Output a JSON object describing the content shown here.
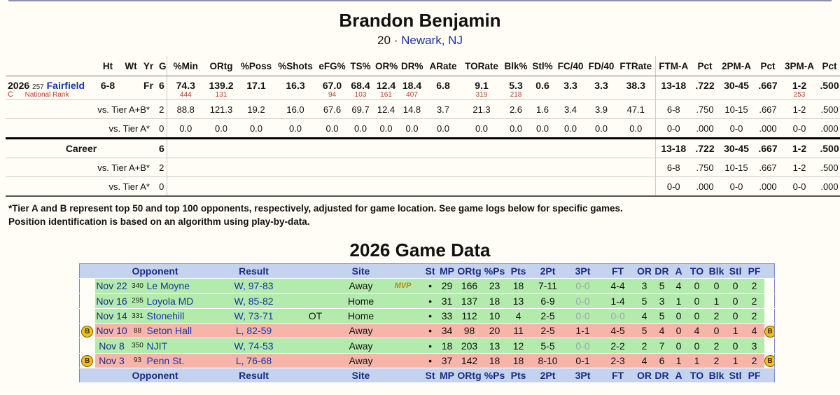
{
  "player": {
    "name": "Brandon Benjamin",
    "number": "20",
    "dot": "·",
    "hometown": "Newark, NJ"
  },
  "stats": {
    "headers": [
      "",
      "Ht",
      "Wt",
      "Yr",
      "G",
      "%Min",
      "ORtg",
      "%Poss",
      "%Shots",
      "eFG%",
      "TS%",
      "OR%",
      "DR%",
      "ARate",
      "TORate",
      "Blk%",
      "Stl%",
      "FC/40",
      "FD/40",
      "FTRate",
      "FTM-A",
      "Pct",
      "2PM-A",
      "Pct",
      "3PM-A",
      "Pct"
    ],
    "main": {
      "year": "2026",
      "team_rank": "257",
      "team": "Fairfield",
      "position": "C",
      "national_rank_label": "National Rank",
      "ht": "6-8",
      "wt": "",
      "yr": "Fr",
      "g": "6",
      "values": [
        "74.3",
        "139.2",
        "17.1",
        "16.3",
        "67.0",
        "68.4",
        "12.4",
        "18.4",
        "6.8",
        "9.1",
        "5.3",
        "0.6",
        "3.3",
        "3.3",
        "38.3",
        "13-18",
        ".722",
        "30-45",
        ".667",
        "1-2",
        ".500"
      ],
      "ranks": [
        "444",
        "131",
        "",
        "",
        "94",
        "103",
        "161",
        "407",
        "",
        "319",
        "218",
        "",
        "",
        "",
        "",
        "",
        "",
        "",
        "",
        " 253",
        ""
      ]
    },
    "tierab": {
      "label": "vs. Tier A+B*",
      "g": "2",
      "values": [
        "88.8",
        "121.3",
        "19.2",
        "16.0",
        "67.6",
        "69.7",
        "12.4",
        "14.8",
        "3.7",
        "21.3",
        "2.6",
        "1.6",
        "3.4",
        "3.9",
        "47.1",
        "6-8",
        ".750",
        "10-15",
        ".667",
        "1-2",
        ".500"
      ]
    },
    "tiera": {
      "label": "vs. Tier A*",
      "g": "0",
      "values": [
        "0.0",
        "0.0",
        "0.0",
        "0.0",
        "0.0",
        "0.0",
        "0.0",
        "0.0",
        "0.0",
        "0.0",
        "0.0",
        "0.0",
        "0.0",
        "0.0",
        "0.0",
        "0-0",
        ".000",
        "0-0",
        ".000",
        "0-0",
        ".000"
      ]
    },
    "career": {
      "label": "Career",
      "g": "6",
      "values": [
        "13-18",
        ".722",
        "30-45",
        ".667",
        "1-2",
        ".500"
      ]
    },
    "career_tierab": {
      "label": "vs. Tier A+B*",
      "g": "2",
      "values": [
        "6-8",
        ".750",
        "10-15",
        ".667",
        "1-2",
        ".500"
      ]
    },
    "career_tiera": {
      "label": "vs. Tier A*",
      "g": "0",
      "values": [
        "0-0",
        ".000",
        "0-0",
        ".000",
        "0-0",
        ".000"
      ]
    }
  },
  "notes": [
    "*Tier A and B represent top 50 and top 100 opponents, respectively, adjusted for game location. See game logs below for specific games.",
    "Position identification is based on an algorithm using play-by-data."
  ],
  "game_title": "2026 Game Data",
  "game_headers": [
    "Opponent",
    "Result",
    "Site",
    "St",
    "MP",
    "ORtg",
    "%Ps",
    "Pts",
    "2Pt",
    "3Pt",
    "FT",
    "OR",
    "DR",
    "A",
    "TO",
    "Blk",
    "Stl",
    "PF"
  ],
  "games": [
    {
      "outcome": "win",
      "badge": "",
      "date": "Nov 22",
      "rank": "340",
      "opp": "Le Moyne",
      "result": "W, 97-83",
      "ot": "",
      "site": "Away",
      "mvp": "MVP",
      "st": "•",
      "mp": "29",
      "ortg": "166",
      "ps": "23",
      "pts": "18",
      "p2": "7-11",
      "p3": "0-0",
      "ft": "4-4",
      "or": "3",
      "dr": "5",
      "a": "4",
      "to": "0",
      "blk": "0",
      "stl": "0",
      "pf": "2"
    },
    {
      "outcome": "win",
      "badge": "",
      "date": "Nov 16",
      "rank": "295",
      "opp": "Loyola MD",
      "result": "W, 85-82",
      "ot": "",
      "site": "Home",
      "mvp": "",
      "st": "•",
      "mp": "31",
      "ortg": "137",
      "ps": "18",
      "pts": "13",
      "p2": "6-9",
      "p3": "0-0",
      "ft": "1-4",
      "or": "5",
      "dr": "3",
      "a": "1",
      "to": "0",
      "blk": "1",
      "stl": "0",
      "pf": "2"
    },
    {
      "outcome": "win",
      "badge": "",
      "date": "Nov 14",
      "rank": "331",
      "opp": "Stonehill",
      "result": "W, 73-71",
      "ot": "OT",
      "site": "Home",
      "mvp": "",
      "st": "•",
      "mp": "33",
      "ortg": "112",
      "ps": "10",
      "pts": "4",
      "p2": "2-5",
      "p3": "0-0",
      "ft": "0-0",
      "or": "4",
      "dr": "5",
      "a": "0",
      "to": "0",
      "blk": "2",
      "stl": "0",
      "pf": "2"
    },
    {
      "outcome": "loss",
      "badge": "B",
      "date": "Nov 10",
      "rank": "88",
      "opp": "Seton Hall",
      "result": "L, 82-59",
      "ot": "",
      "site": "Away",
      "mvp": "",
      "st": "•",
      "mp": "34",
      "ortg": "98",
      "ps": "20",
      "pts": "11",
      "p2": "2-5",
      "p3": "1-1",
      "ft": "4-5",
      "or": "5",
      "dr": "4",
      "a": "0",
      "to": "4",
      "blk": "0",
      "stl": "1",
      "pf": "4"
    },
    {
      "outcome": "win",
      "badge": "",
      "date": "Nov 8",
      "rank": "350",
      "opp": "NJIT",
      "result": "W, 74-53",
      "ot": "",
      "site": "Away",
      "mvp": "",
      "st": "•",
      "mp": "18",
      "ortg": "203",
      "ps": "13",
      "pts": "12",
      "p2": "5-5",
      "p3": "0-0",
      "ft": "2-2",
      "or": "2",
      "dr": "7",
      "a": "0",
      "to": "0",
      "blk": "2",
      "stl": "0",
      "pf": "3"
    },
    {
      "outcome": "loss",
      "badge": "B",
      "date": "Nov 3",
      "rank": "93",
      "opp": "Penn St.",
      "result": "L, 76-68",
      "ot": "",
      "site": "Away",
      "mvp": "",
      "st": "•",
      "mp": "37",
      "ortg": "142",
      "ps": "18",
      "pts": "18",
      "p2": "8-10",
      "p3": "0-1",
      "ft": "2-3",
      "or": "4",
      "dr": "6",
      "a": "1",
      "to": "1",
      "blk": "2",
      "stl": "1",
      "pf": "2"
    }
  ]
}
